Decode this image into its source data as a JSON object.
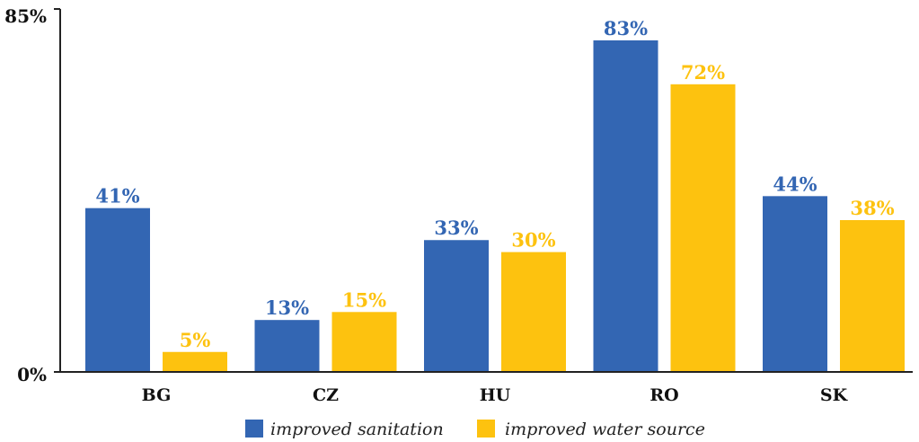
{
  "chart_data": {
    "type": "bar",
    "categories": [
      "BG",
      "CZ",
      "HU",
      "RO",
      "SK"
    ],
    "series": [
      {
        "name": "improved sanitation",
        "color": "#3366b3",
        "values": [
          41,
          13,
          33,
          83,
          44
        ],
        "labels": [
          "41%",
          "13%",
          "33%",
          "83%",
          "44%"
        ]
      },
      {
        "name": "improved water source",
        "color": "#fdc20f",
        "values": [
          5,
          15,
          30,
          72,
          38
        ],
        "labels": [
          "5%",
          "15%",
          "30%",
          "72%",
          "38%"
        ]
      }
    ],
    "ylim": [
      0,
      85
    ],
    "yticks": [
      "0%",
      "85%"
    ],
    "legend_position": "bottom",
    "grid": false
  }
}
